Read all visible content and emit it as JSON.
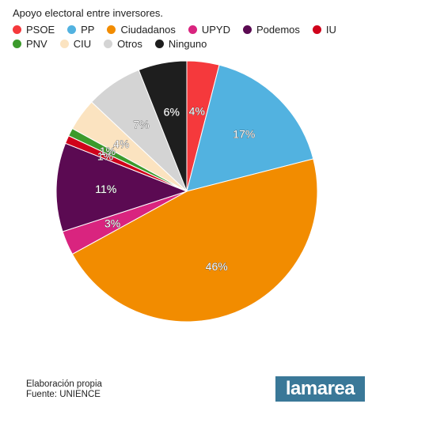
{
  "chart_data": {
    "type": "pie",
    "title": "Apoyo electoral entre inversores.",
    "slices": [
      {
        "label": "PSOE",
        "value": 4,
        "display": "4%",
        "color": "#f5393c"
      },
      {
        "label": "PP",
        "value": 17,
        "display": "17%",
        "color": "#52b2e0"
      },
      {
        "label": "Ciudadanos",
        "value": 46,
        "display": "46%",
        "color": "#f28c00"
      },
      {
        "label": "UPYD",
        "value": 3,
        "display": "3%",
        "color": "#d9247f"
      },
      {
        "label": "Podemos",
        "value": 11,
        "display": "11%",
        "color": "#5b0a52"
      },
      {
        "label": "IU",
        "value": 1,
        "display": "1%",
        "color": "#d0021b"
      },
      {
        "label": "PNV",
        "value": 1,
        "display": "1%",
        "color": "#3c9a2c"
      },
      {
        "label": "CIU",
        "value": 4,
        "display": "4%",
        "color": "#fbe3c0"
      },
      {
        "label": "Otros",
        "value": 7,
        "display": "7%",
        "color": "#d4d4d4"
      },
      {
        "label": "Ninguno",
        "value": 6,
        "display": "6%",
        "color": "#1e1e1e"
      }
    ]
  },
  "footer": {
    "line1": "Elaboración propia",
    "line2": "Fuente: UNIENCE"
  },
  "logo": {
    "text": "lamarea"
  }
}
